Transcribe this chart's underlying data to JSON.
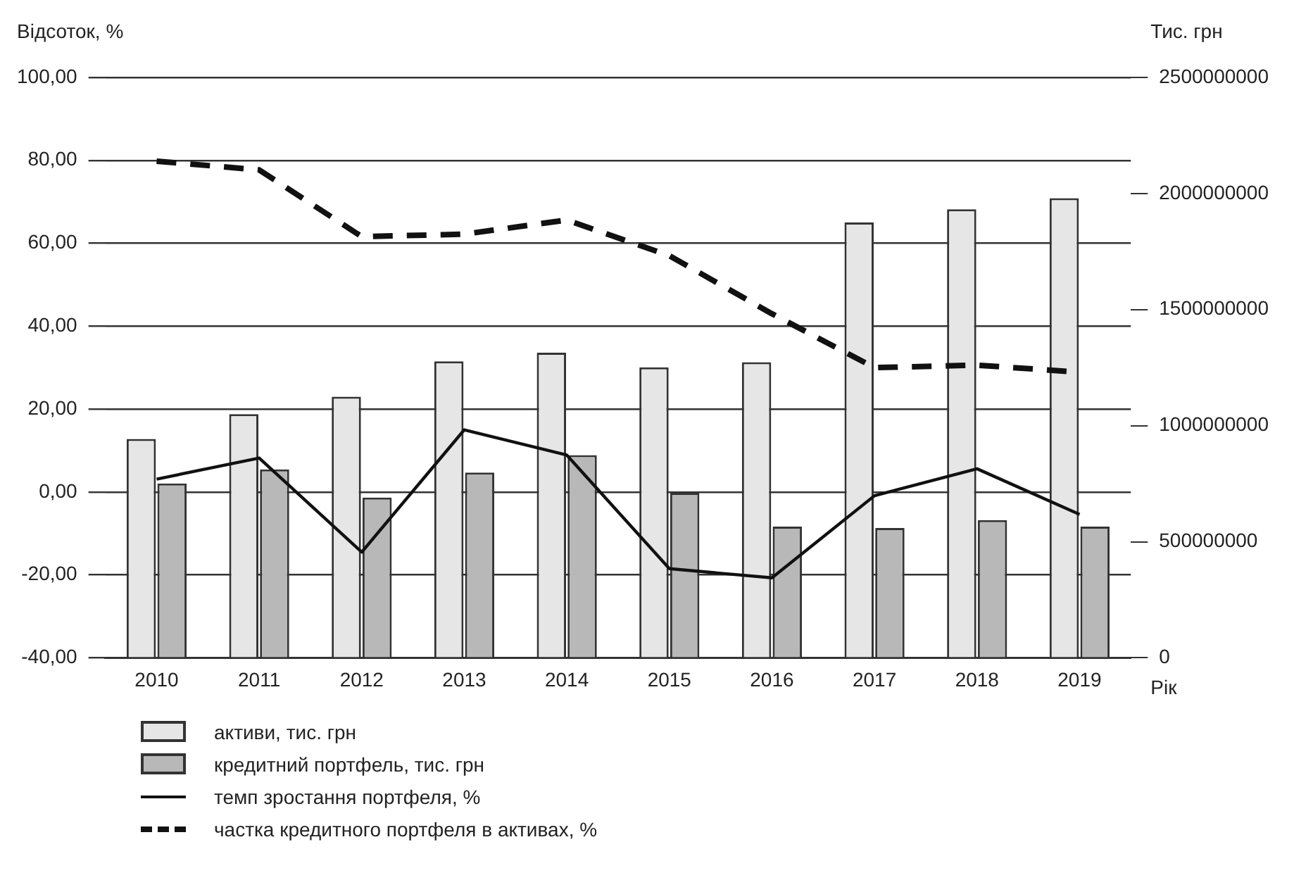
{
  "chart_data": {
    "type": "bar",
    "ylabel": "Відсоток, %",
    "y2label": "Тис. грн",
    "xlabel": "Рік",
    "categories": [
      "2010",
      "2011",
      "2012",
      "2013",
      "2014",
      "2015",
      "2016",
      "2017",
      "2018",
      "2019"
    ],
    "ylim": [
      -40,
      100
    ],
    "yticks": [
      {
        "value": -40,
        "label": "-40,00"
      },
      {
        "value": -20,
        "label": "-20,00"
      },
      {
        "value": 0,
        "label": "0,00"
      },
      {
        "value": 20,
        "label": "20,00"
      },
      {
        "value": 40,
        "label": "40,00"
      },
      {
        "value": 60,
        "label": "60,00"
      },
      {
        "value": 80,
        "label": "80,00"
      },
      {
        "value": 100,
        "label": "100,00"
      }
    ],
    "y2lim": [
      0,
      2500000000
    ],
    "y2ticks": [
      0,
      500000000,
      1000000000,
      1500000000,
      2000000000,
      2500000000
    ],
    "grid": "y",
    "legend": "bottom",
    "marker": "none",
    "series": [
      {
        "name": "активи, тис. грн",
        "type": "bar",
        "axis": "y2",
        "color": "#e6e6e6",
        "values": [
          943000000,
          1050000000,
          1125000000,
          1277000000,
          1314000000,
          1251000000,
          1273000000,
          1875000000,
          1932000000,
          1980000000
        ]
      },
      {
        "name": "кредитний портфель, тис. грн",
        "type": "bar",
        "axis": "y2",
        "color": "#b8b8b8",
        "values": [
          751000000,
          812000000,
          690000000,
          798000000,
          873000000,
          711000000,
          565000000,
          559000000,
          593000000,
          565000000
        ]
      },
      {
        "name": "темп зростання портфеля, %",
        "type": "line",
        "line_style": "solid",
        "color": "#111111",
        "values": [
          3.1,
          8.2,
          -14.5,
          15,
          8.9,
          -18.5,
          -20.7,
          -0.9,
          5.6,
          -5.4
        ]
      },
      {
        "name": "частка кредитного портфеля в активах, %",
        "type": "line",
        "line_style": "dashed",
        "color": "#111111",
        "values": [
          79.8,
          77.7,
          61.6,
          62.2,
          65.6,
          57,
          43,
          30,
          30.6,
          28.9
        ]
      }
    ]
  }
}
